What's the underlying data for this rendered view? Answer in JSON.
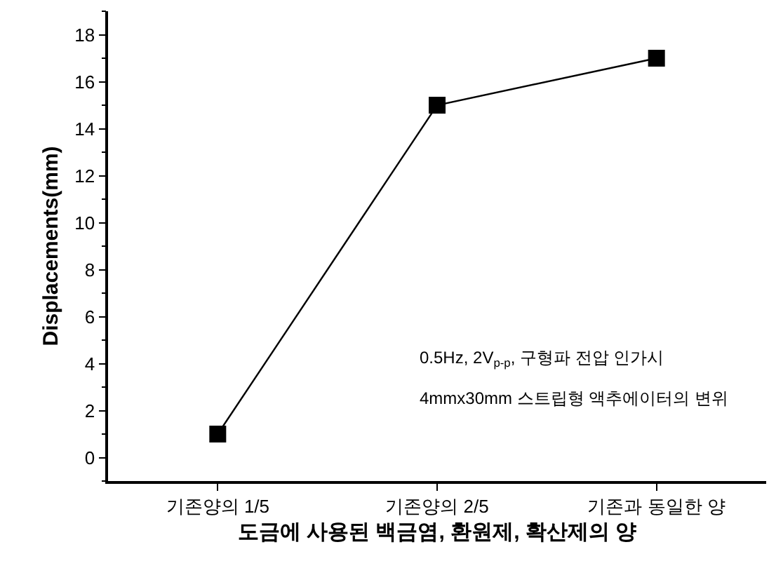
{
  "chart_data": {
    "type": "line",
    "xlabel": "도금에 사용된 백금염, 환원제, 확산제의 양",
    "ylabel": "Displacements(mm)",
    "categories": [
      "기존양의 1/5",
      "기존양의 2/5",
      "기존과 동일한 양"
    ],
    "series": [
      {
        "color": "#000000",
        "values": [
          1,
          15,
          17
        ]
      }
    ],
    "ylim": [
      -1,
      19
    ],
    "yticks": [
      0,
      2,
      4,
      6,
      8,
      10,
      12,
      14,
      16,
      18
    ],
    "grid": false,
    "marker": "square",
    "line_style": "solid",
    "annotations": [
      "0.5Hz, 2V$_{p-p}$, 구형파 전압 인가시",
      "4mmx30mm 스트립형 액추에이터의 변위"
    ]
  }
}
